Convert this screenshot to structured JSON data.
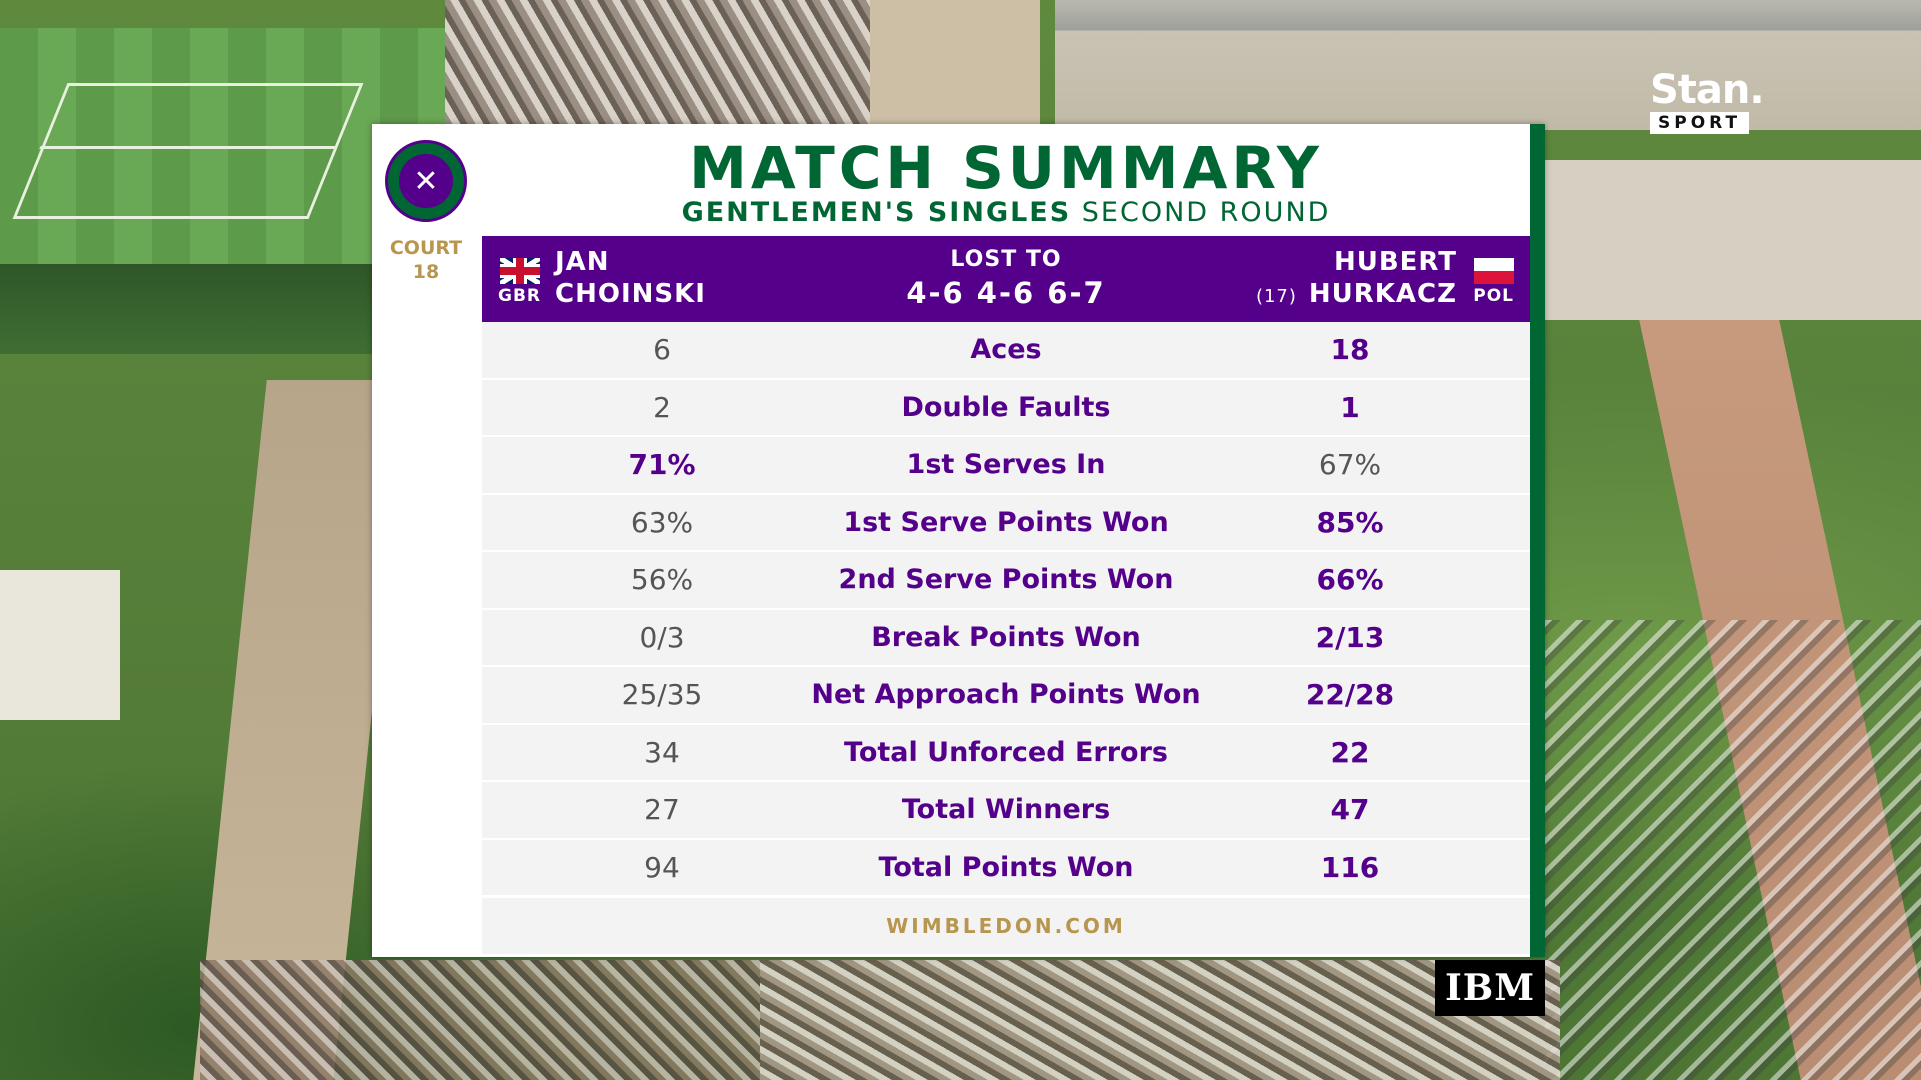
{
  "panel": {
    "title": "MATCH SUMMARY",
    "subtitle_event": "GENTLEMEN'S SINGLES",
    "subtitle_round": "SECOND ROUND",
    "court_label": "COURT",
    "court_number": "18",
    "footer": "WIMBLEDON.COM"
  },
  "player_left": {
    "first": "JAN",
    "last": "CHOINSKI",
    "country": "GBR",
    "flag": "union-jack"
  },
  "player_right": {
    "first": "HUBERT",
    "last": "HURKACZ",
    "seed": "(17)",
    "country": "POL",
    "flag": "poland"
  },
  "result": {
    "label": "LOST TO",
    "score": "4-6 4-6 6-7"
  },
  "stats": [
    {
      "label": "Aces",
      "left": "6",
      "right": "18",
      "leader": "right"
    },
    {
      "label": "Double Faults",
      "left": "2",
      "right": "1",
      "leader": "right"
    },
    {
      "label": "1st Serves In",
      "left": "71%",
      "right": "67%",
      "leader": "left"
    },
    {
      "label": "1st Serve Points Won",
      "left": "63%",
      "right": "85%",
      "leader": "right"
    },
    {
      "label": "2nd Serve Points Won",
      "left": "56%",
      "right": "66%",
      "leader": "right"
    },
    {
      "label": "Break Points Won",
      "left": "0/3",
      "right": "2/13",
      "leader": "right"
    },
    {
      "label": "Net Approach Points Won",
      "left": "25/35",
      "right": "22/28",
      "leader": "right"
    },
    {
      "label": "Total Unforced Errors",
      "left": "34",
      "right": "22",
      "leader": "right"
    },
    {
      "label": "Total Winners",
      "left": "27",
      "right": "47",
      "leader": "right"
    },
    {
      "label": "Total Points Won",
      "left": "94",
      "right": "116",
      "leader": "right"
    }
  ],
  "broadcast": {
    "stan_word": "Stan.",
    "stan_sport": "SPORT",
    "sponsor": "IBM"
  },
  "colors": {
    "wimbledon_purple": "#54008b",
    "wimbledon_green": "#006633",
    "gold": "#b8964f"
  }
}
